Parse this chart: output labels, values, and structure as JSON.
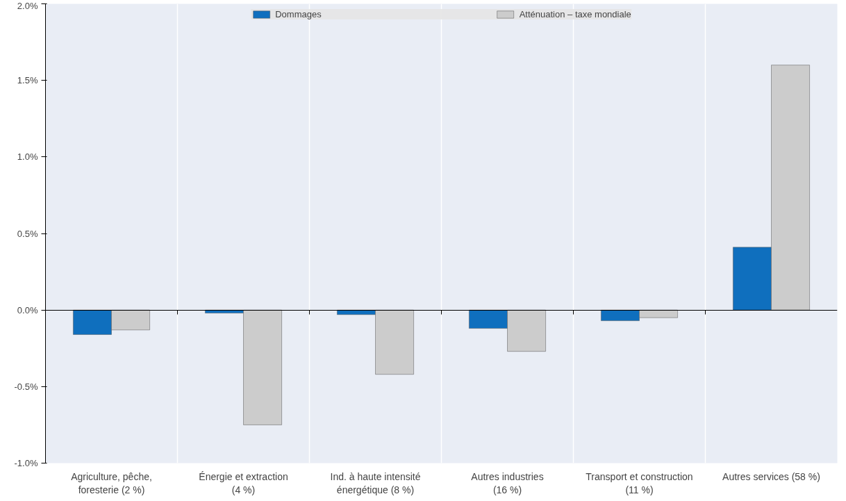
{
  "chart_data": {
    "type": "bar",
    "categories": [
      "Agriculture, pêche,\nforesterie (2 %)",
      "Énergie et extraction\n(4 %)",
      "Ind. à haute intensité\nénergétique (8 %)",
      "Autres industries\n(16 %)",
      "Transport et construction\n(11 %)",
      "Autres services (58 %)"
    ],
    "series": [
      {
        "name": "Dommages",
        "color": "#0f6fbe",
        "values": [
          -0.16,
          -0.02,
          -0.03,
          -0.12,
          -0.07,
          0.41
        ]
      },
      {
        "name": "Atténuation – taxe mondiale",
        "color": "#cccccc",
        "values": [
          -0.13,
          -0.75,
          -0.42,
          -0.27,
          -0.05,
          1.6
        ]
      }
    ],
    "ylim": [
      -1.0,
      2.0
    ],
    "yticks": [
      {
        "value": -1.0,
        "label": "-1.0%"
      },
      {
        "value": -0.5,
        "label": "-0.5%"
      },
      {
        "value": 0.0,
        "label": "0.0%"
      },
      {
        "value": 0.5,
        "label": "0.5%"
      },
      {
        "value": 1.0,
        "label": "1.0%"
      },
      {
        "value": 1.5,
        "label": "1.5%"
      },
      {
        "value": 2.0,
        "label": "2.0%"
      }
    ],
    "grid": "x",
    "legend": "top"
  }
}
